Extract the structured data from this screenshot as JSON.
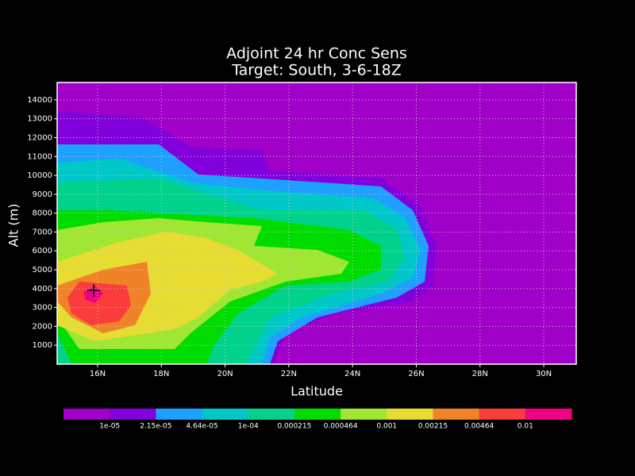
{
  "chart_data": {
    "type": "contour",
    "title": "Adjoint 24 hr Conc Sens",
    "subtitle": "Target: South, 3-6-18Z",
    "x_label": "Latitude",
    "y_label": "Alt (m)",
    "xlim": [
      14.73,
      31.02
    ],
    "ylim": [
      0,
      14920
    ],
    "xticks": [
      {
        "value": 16,
        "label": "16N"
      },
      {
        "value": 18,
        "label": "18N"
      },
      {
        "value": 20,
        "label": "20N"
      },
      {
        "value": 22,
        "label": "22N"
      },
      {
        "value": 24,
        "label": "24N"
      },
      {
        "value": 26,
        "label": "26N"
      },
      {
        "value": 28,
        "label": "28N"
      },
      {
        "value": 30,
        "label": "30N"
      }
    ],
    "yticks": [
      1000,
      2000,
      3000,
      4000,
      5000,
      6000,
      7000,
      8000,
      9000,
      10000,
      11000,
      12000,
      13000,
      14000
    ],
    "grid": true,
    "levels": [
      {
        "value": 1e-05,
        "label": "1e-05"
      },
      {
        "value": 2.15e-05,
        "label": "2.15e-05"
      },
      {
        "value": 4.64e-05,
        "label": "4.64e-05"
      },
      {
        "value": 0.0001,
        "label": "1e-04"
      },
      {
        "value": 0.000215,
        "label": "0.000215"
      },
      {
        "value": 0.000464,
        "label": "0.000464"
      },
      {
        "value": 0.001,
        "label": "0.001"
      },
      {
        "value": 0.00215,
        "label": "0.00215"
      },
      {
        "value": 0.00464,
        "label": "0.00464"
      },
      {
        "value": 0.01,
        "label": "0.01"
      }
    ],
    "colors": [
      "#a000c8",
      "#8200dc",
      "#1ea0ff",
      "#00c8c8",
      "#00d28c",
      "#00dc00",
      "#a0e632",
      "#e6dc32",
      "#f08228",
      "#fa3c3c",
      "#f00082"
    ]
  }
}
